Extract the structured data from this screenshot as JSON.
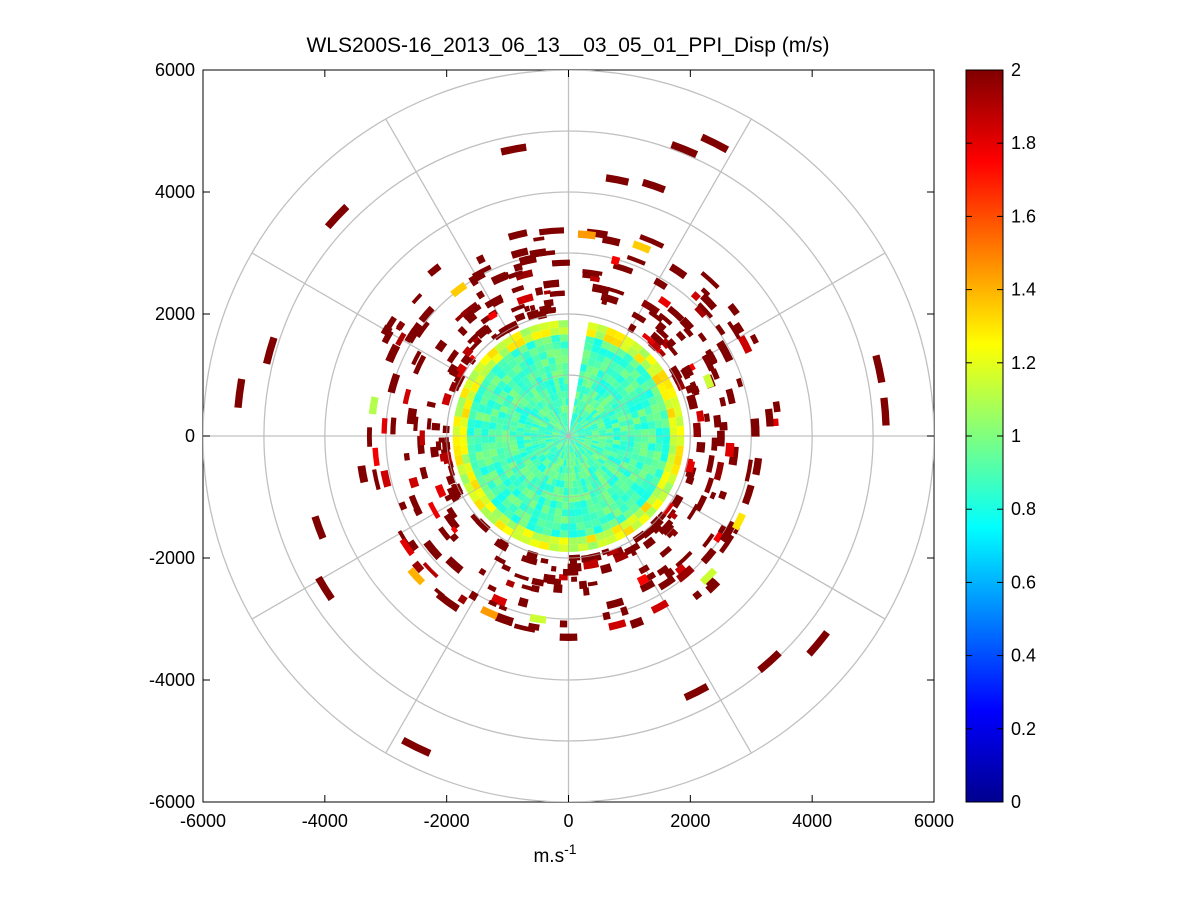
{
  "chart_data": {
    "type": "heatmap",
    "subtype": "polar-ppi-scan",
    "title": "WLS200S-16_2013_06_13__03_05_01_PPI_Disp (m/s)",
    "xlabel": "m.s",
    "xlabel_superscript": "-1",
    "ylabel": "",
    "xlim": [
      -6000,
      6000
    ],
    "ylim": [
      -6000,
      6000
    ],
    "xticks": [
      -6000,
      -4000,
      -2000,
      0,
      2000,
      4000,
      6000
    ],
    "yticks": [
      6000,
      4000,
      2000,
      0,
      -2000,
      -4000,
      -6000
    ],
    "xtick_labels": [
      "-6000",
      "-4000",
      "-2000",
      "0",
      "2000",
      "4000",
      "6000"
    ],
    "ytick_labels": [
      "6000",
      "4000",
      "2000",
      "0",
      "-2000",
      "-4000",
      "-6000"
    ],
    "polar_grid": {
      "ring_radii": [
        1000,
        2000,
        3000,
        4000,
        5000,
        6000
      ],
      "spoke_angles_deg": [
        0,
        30,
        60,
        90,
        120,
        150,
        180,
        210,
        240,
        270,
        300,
        330
      ]
    },
    "colorbar": {
      "colormap": "jet",
      "range": [
        0,
        2
      ],
      "ticks": [
        0,
        0.2,
        0.4,
        0.6,
        0.8,
        1,
        1.2,
        1.4,
        1.6,
        1.8,
        2
      ],
      "tick_labels": [
        "0",
        "0.2",
        "0.4",
        "0.6",
        "0.8",
        "1",
        "1.2",
        "1.4",
        "1.6",
        "1.8",
        "2"
      ]
    },
    "inner_disk": {
      "radius": 1900,
      "typical_value": 0.9,
      "edge_value": 1.2,
      "gap_azimuth_deg": [
        0,
        8
      ]
    },
    "cells": [
      {
        "x": -1800,
        "y": 2400,
        "v": 1.35
      },
      {
        "x": -1500,
        "y": 2600,
        "v": 2.0
      },
      {
        "x": -800,
        "y": 3000,
        "v": 2.0
      },
      {
        "x": -500,
        "y": 3000,
        "v": 2.0
      },
      {
        "x": 300,
        "y": 3300,
        "v": 1.45
      },
      {
        "x": 700,
        "y": 3200,
        "v": 2.0
      },
      {
        "x": 1200,
        "y": 3100,
        "v": 1.35
      },
      {
        "x": 1800,
        "y": 2700,
        "v": 2.0
      },
      {
        "x": 2300,
        "y": 2200,
        "v": 2.0
      },
      {
        "x": 2900,
        "y": 1500,
        "v": 1.85
      },
      {
        "x": -3200,
        "y": 500,
        "v": 1.1
      },
      {
        "x": -3000,
        "y": -700,
        "v": 1.85
      },
      {
        "x": -2500,
        "y": -2300,
        "v": 1.4
      },
      {
        "x": -1300,
        "y": -2900,
        "v": 1.45
      },
      {
        "x": -500,
        "y": -3000,
        "v": 1.15
      },
      {
        "x": 0,
        "y": -3300,
        "v": 2.0
      },
      {
        "x": 800,
        "y": -3100,
        "v": 1.85
      },
      {
        "x": 1500,
        "y": -2800,
        "v": 1.85
      },
      {
        "x": 2300,
        "y": -2300,
        "v": 1.15
      },
      {
        "x": 2800,
        "y": -1400,
        "v": 1.3
      },
      {
        "x": 3100,
        "y": -500,
        "v": 2.0
      },
      {
        "x": 2300,
        "y": 900,
        "v": 1.15
      },
      {
        "x": 2000,
        "y": -500,
        "v": 1.8
      },
      {
        "x": -2000,
        "y": 600,
        "v": 1.85
      },
      {
        "x": -2100,
        "y": -900,
        "v": 1.8
      },
      {
        "x": -5400,
        "y": 700,
        "v": 2.0
      },
      {
        "x": -4900,
        "y": 1400,
        "v": 2.0
      },
      {
        "x": -3800,
        "y": 3600,
        "v": 2.0
      },
      {
        "x": -900,
        "y": 4700,
        "v": 2.0
      },
      {
        "x": 1900,
        "y": 4700,
        "v": 2.0
      },
      {
        "x": 2400,
        "y": 4800,
        "v": 2.0
      },
      {
        "x": 800,
        "y": 4200,
        "v": 2.0
      },
      {
        "x": 1400,
        "y": 4100,
        "v": 2.0
      },
      {
        "x": 5100,
        "y": 1100,
        "v": 2.0
      },
      {
        "x": 5200,
        "y": 400,
        "v": 2.0
      },
      {
        "x": -4100,
        "y": -1500,
        "v": 2.0
      },
      {
        "x": -4000,
        "y": -2500,
        "v": 2.0
      },
      {
        "x": -2500,
        "y": -5100,
        "v": 2.0
      },
      {
        "x": 2100,
        "y": -4200,
        "v": 2.0
      },
      {
        "x": 3300,
        "y": -3700,
        "v": 2.0
      },
      {
        "x": 4100,
        "y": -3400,
        "v": 2.0
      },
      {
        "x": 3300,
        "y": 300,
        "v": 2.0
      }
    ]
  }
}
